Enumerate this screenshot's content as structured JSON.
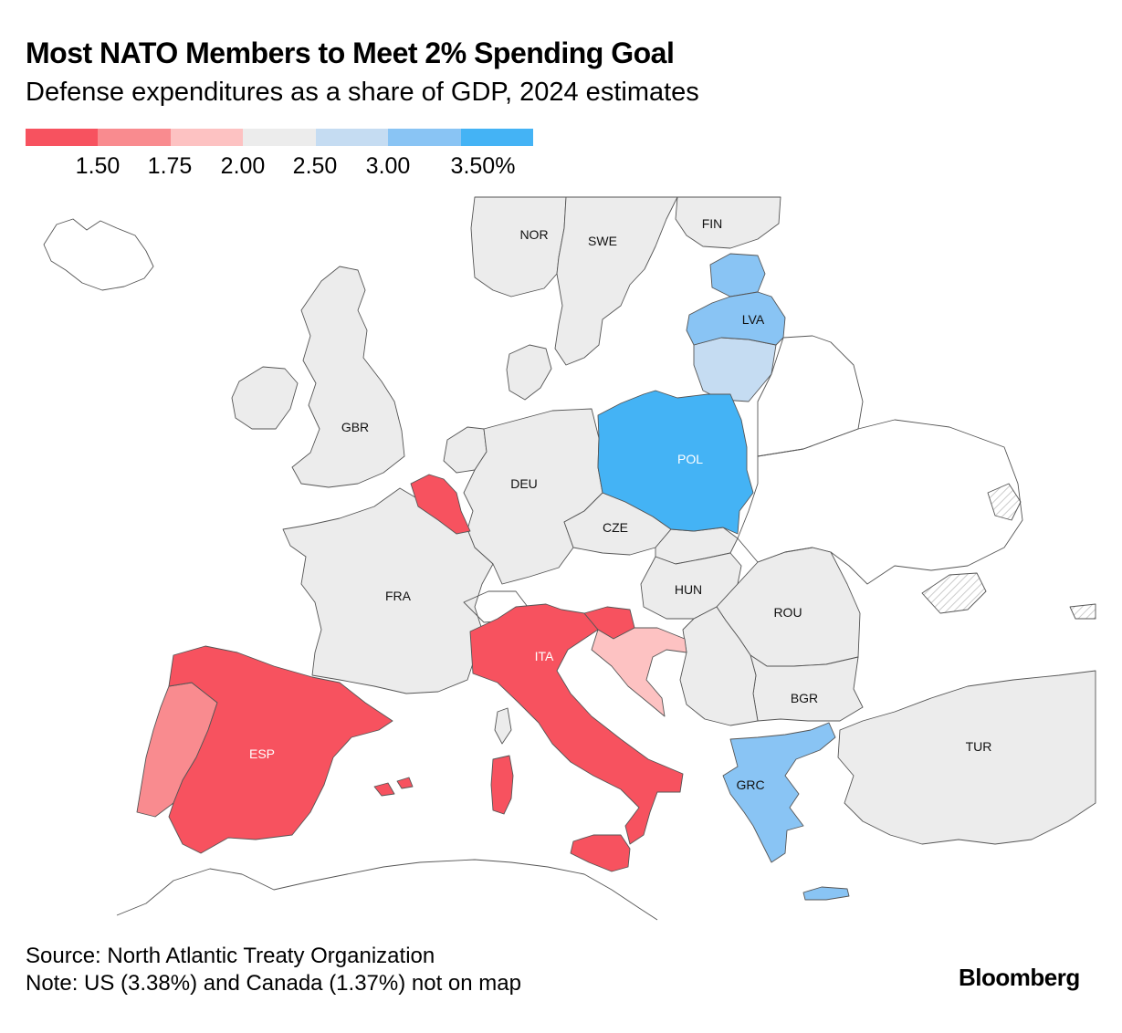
{
  "title": "Most NATO Members to Meet 2% Spending Goal",
  "subtitle": "Defense expenditures as a share of GDP, 2024 estimates",
  "legend": {
    "colors": [
      "#f7525f",
      "#f98b8f",
      "#fdc2c2",
      "#ececec",
      "#c5dcf2",
      "#89c4f4",
      "#44b3f5"
    ],
    "labels": [
      "1.50",
      "1.75",
      "2.00",
      "2.50",
      "3.00",
      "3.50%"
    ]
  },
  "colors": {
    "red": "#f7525f",
    "mid_red": "#f98b8f",
    "light_red": "#fdc2c2",
    "neutral": "#ececec",
    "light_blue": "#c5dcf2",
    "mid_blue": "#89c4f4",
    "blue": "#44b3f5",
    "border": "#444444"
  },
  "map": {
    "labels": {
      "nor": "NOR",
      "swe": "SWE",
      "fin": "FIN",
      "lva": "LVA",
      "gbr": "GBR",
      "deu": "DEU",
      "pol": "POL",
      "cze": "CZE",
      "fra": "FRA",
      "hun": "HUN",
      "rou": "ROU",
      "ita": "ITA",
      "bgr": "BGR",
      "esp": "ESP",
      "tur": "TUR",
      "grc": "GRC"
    }
  },
  "footer": {
    "source": "Source: North Atlantic Treaty Organization",
    "note": "Note: US (3.38%) and Canada (1.37%) not on map"
  },
  "brand": "Bloomberg"
}
